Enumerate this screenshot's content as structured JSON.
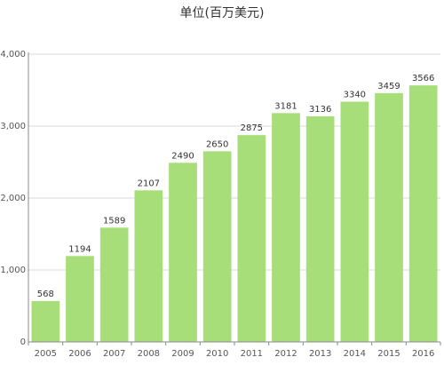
{
  "chart_data": {
    "type": "bar",
    "title": "单位(百万美元)",
    "categories": [
      "2005",
      "2006",
      "2007",
      "2008",
      "2009",
      "2010",
      "2011",
      "2012",
      "2013",
      "2014",
      "2015",
      "2016"
    ],
    "values": [
      568,
      1194,
      1589,
      2107,
      2490,
      2650,
      2875,
      3181,
      3136,
      3340,
      3459,
      3566
    ],
    "data_labels": [
      "568",
      "1194",
      "1589",
      "2107",
      "2490",
      "2650",
      "2875",
      "3181",
      "3136",
      "3340",
      "3459",
      "3566"
    ],
    "yticks": [
      0,
      1000,
      2000,
      3000,
      4000
    ],
    "ytick_labels": [
      "0",
      "1,000",
      "2,000",
      "3,000",
      "4,000"
    ],
    "ylim": [
      0,
      4000
    ],
    "xlabel": "",
    "ylabel": "",
    "grid": true,
    "legend": "none",
    "bar_color": "#a8de7a",
    "grid_color": "#d9d9d9",
    "axis_color": "#888888"
  }
}
